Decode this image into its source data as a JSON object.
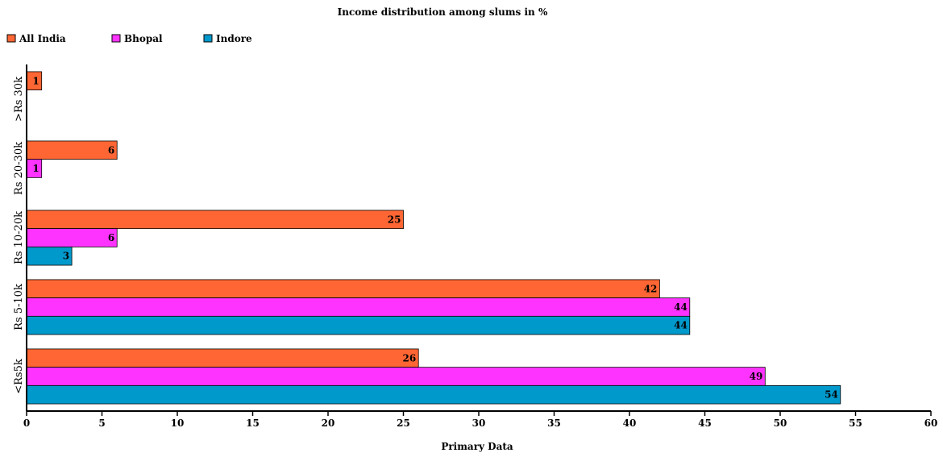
{
  "chart_data": {
    "type": "bar",
    "orientation": "horizontal",
    "title": "Income distribution among slums in %",
    "xlabel": "Primary Data",
    "ylabel": "",
    "xlim": [
      0,
      60
    ],
    "x_ticks": [
      "0",
      "5",
      "10",
      "15",
      "20",
      "25",
      "30",
      "35",
      "40",
      "45",
      "50",
      "55",
      "60"
    ],
    "categories": [
      ">Rs 30k",
      "Rs 20-30k",
      "Rs 10-20k",
      "Rs 5-10k",
      "<Rs5k"
    ],
    "series": [
      {
        "name": "All India",
        "color": "#ff6633",
        "values": [
          1,
          6,
          25,
          42,
          26
        ]
      },
      {
        "name": "Bhopal",
        "color": "#ff33ff",
        "values": [
          null,
          1,
          6,
          44,
          49
        ]
      },
      {
        "name": "Indore",
        "color": "#0099cc",
        "values": [
          null,
          null,
          3,
          44,
          54
        ]
      }
    ],
    "legend_position": "top-left",
    "grid": false
  }
}
